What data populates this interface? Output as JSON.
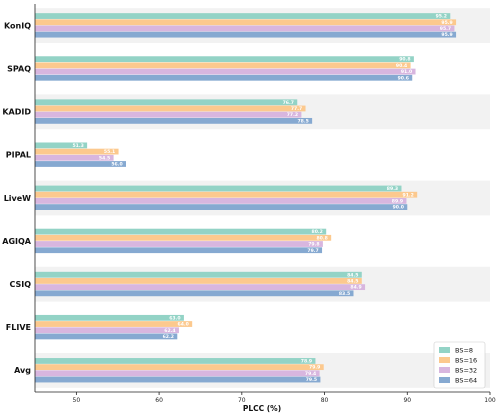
{
  "chart_data": {
    "type": "bar",
    "orientation": "horizontal",
    "categories": [
      "KonIQ",
      "SPAQ",
      "KADID",
      "PIPAL",
      "LiveW",
      "AGIQA",
      "CSIQ",
      "FLIVE",
      "Avg"
    ],
    "series": [
      {
        "name": "BS=8",
        "color": "#93d3c6",
        "values": [
          95.2,
          90.8,
          76.7,
          51.3,
          89.3,
          80.2,
          84.5,
          63.0,
          78.9
        ]
      },
      {
        "name": "BS=16",
        "color": "#fcc98e",
        "values": [
          95.9,
          90.4,
          77.7,
          55.1,
          91.2,
          80.8,
          84.5,
          64.0,
          79.9
        ]
      },
      {
        "name": "BS=32",
        "color": "#d8b6df",
        "values": [
          95.7,
          91.0,
          77.2,
          54.5,
          89.9,
          79.8,
          84.9,
          62.4,
          79.4
        ]
      },
      {
        "name": "BS=64",
        "color": "#86a9d1",
        "values": [
          95.9,
          90.6,
          78.5,
          56.0,
          90.0,
          79.7,
          83.5,
          62.2,
          79.5
        ]
      }
    ],
    "value_labels": [
      [
        "95.2",
        "95.9",
        "95.7",
        "95.9"
      ],
      [
        "90.8",
        "90.4",
        "91.0",
        "90.6"
      ],
      [
        "76.7",
        "77.7",
        "77.2",
        "78.5"
      ],
      [
        "51.3",
        "55.1",
        "54.5",
        "56.0"
      ],
      [
        "89.3",
        "91.2",
        "89.9",
        "90.0"
      ],
      [
        "80.2",
        "80.8",
        "79.8",
        "79.7"
      ],
      [
        "84.5",
        "84.5",
        "84.9",
        "83.5"
      ],
      [
        "63.0",
        "64.0",
        "62.4",
        "62.2"
      ],
      [
        "78.9",
        "79.9",
        "79.4",
        "79.5"
      ]
    ],
    "xlabel": "PLCC (%)",
    "ylabel": "",
    "title": "",
    "xlim": [
      45,
      100
    ],
    "xticks": [
      50,
      60,
      70,
      80,
      90,
      100
    ],
    "grid": false,
    "legend": "bottom-right",
    "band_color": "#f2f2f2"
  }
}
